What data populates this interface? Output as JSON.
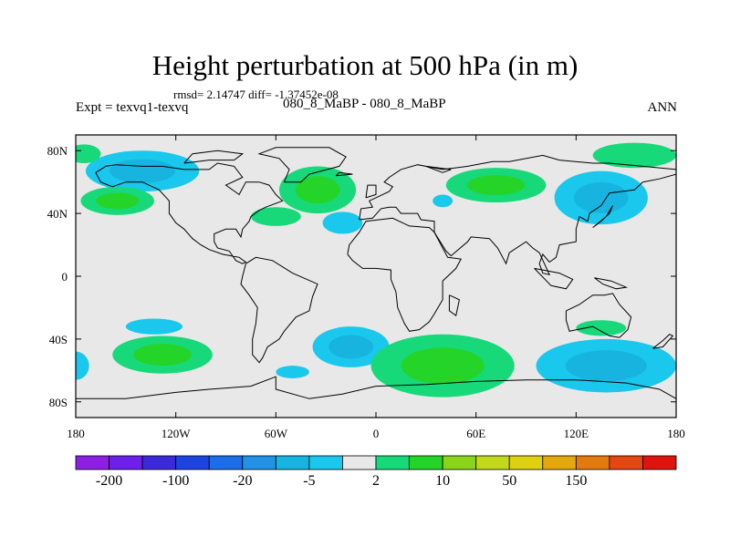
{
  "title": "Height perturbation at 500 hPa (in m)",
  "stats": "rmsd= 2.14747 diff= -1.37452e-08",
  "expt_label": "Expt = texvq1-texvq",
  "case_label": "080_8_MaBP - 080_8_MaBP",
  "season": "ANN",
  "colors": {
    "background": "#e8e8e8",
    "coast": "#000000"
  },
  "map": {
    "lon_ticks": [
      "180",
      "120W",
      "60W",
      "0",
      "60E",
      "120E",
      "180"
    ],
    "lat_ticks": [
      "80N",
      "40N",
      "0",
      "40S",
      "80S"
    ],
    "lon_range": [
      -180,
      180
    ],
    "lat_range": [
      -90,
      90
    ]
  },
  "colorbar": {
    "labels": [
      "-200",
      "-100",
      "-20",
      "-5",
      "2",
      "10",
      "50",
      "150"
    ],
    "colors": [
      "#8d1fe0",
      "#6c20e8",
      "#3a2ad8",
      "#1e44e0",
      "#1b6ee8",
      "#2392e6",
      "#17b4e0",
      "#19c8ec",
      "#e8e8e8",
      "#17d97a",
      "#25d428",
      "#8ad41c",
      "#c2d81a",
      "#e0d012",
      "#e2a80e",
      "#e27a10",
      "#e24812",
      "#e0140e"
    ]
  },
  "fields": [
    {
      "name": "north-pacific-negative",
      "lon": -140,
      "lat": 67,
      "rx": 34,
      "ry": 13,
      "levels": [
        "#19c8ec",
        "#17b4e0"
      ]
    },
    {
      "name": "west-pacific-positive",
      "lon": -155,
      "lat": 48,
      "rx": 22,
      "ry": 9,
      "levels": [
        "#17d97a",
        "#25d428"
      ]
    },
    {
      "name": "north-america-positive",
      "lon": -35,
      "lat": 55,
      "rx": 23,
      "ry": 15,
      "levels": [
        "#17d97a",
        "#25d428"
      ]
    },
    {
      "name": "greenland-positive-west",
      "lon": -60,
      "lat": 38,
      "rx": 15,
      "ry": 6,
      "levels": [
        "#17d97a"
      ]
    },
    {
      "name": "atlantic-negative-small",
      "lon": -20,
      "lat": 34,
      "rx": 12,
      "ry": 7,
      "levels": [
        "#19c8ec"
      ]
    },
    {
      "name": "europe-negative-small",
      "lon": 40,
      "lat": 48,
      "rx": 6,
      "ry": 4,
      "levels": [
        "#19c8ec"
      ]
    },
    {
      "name": "asia-positive",
      "lon": 72,
      "lat": 58,
      "rx": 30,
      "ry": 11,
      "levels": [
        "#17d97a",
        "#25d428"
      ]
    },
    {
      "name": "siberia-negative",
      "lon": 135,
      "lat": 50,
      "rx": 28,
      "ry": 17,
      "levels": [
        "#19c8ec",
        "#17b4e0"
      ]
    },
    {
      "name": "arctic-positive-east",
      "lon": 155,
      "lat": 77,
      "rx": 25,
      "ry": 8,
      "levels": [
        "#17d97a"
      ]
    },
    {
      "name": "arctic-positive-west",
      "lon": -175,
      "lat": 78,
      "rx": 10,
      "ry": 6,
      "levels": [
        "#17d97a"
      ]
    },
    {
      "name": "south-pacific-negative-small",
      "lon": -133,
      "lat": -32,
      "rx": 17,
      "ry": 5,
      "levels": [
        "#19c8ec"
      ]
    },
    {
      "name": "south-pacific-positive",
      "lon": -128,
      "lat": -50,
      "rx": 30,
      "ry": 12,
      "levels": [
        "#17d97a",
        "#25d428"
      ]
    },
    {
      "name": "south-atlantic-negative",
      "lon": -15,
      "lat": -45,
      "rx": 23,
      "ry": 13,
      "levels": [
        "#19c8ec",
        "#17b4e0"
      ]
    },
    {
      "name": "indian-ocean-positive",
      "lon": 40,
      "lat": -57,
      "rx": 43,
      "ry": 20,
      "levels": [
        "#17d97a",
        "#25d428"
      ]
    },
    {
      "name": "southern-indian-negative",
      "lon": 138,
      "lat": -57,
      "rx": 42,
      "ry": 17,
      "levels": [
        "#19c8ec",
        "#17b4e0"
      ]
    },
    {
      "name": "australia-positive-small",
      "lon": 135,
      "lat": -33,
      "rx": 15,
      "ry": 5,
      "levels": [
        "#17d97a"
      ]
    },
    {
      "name": "drake-negative-small",
      "lon": -50,
      "lat": -61,
      "rx": 10,
      "ry": 4,
      "levels": [
        "#19c8ec"
      ]
    },
    {
      "name": "dateline-south-negative",
      "lon": -180,
      "lat": -57,
      "rx": 8,
      "ry": 9,
      "levels": [
        "#19c8ec"
      ]
    }
  ]
}
